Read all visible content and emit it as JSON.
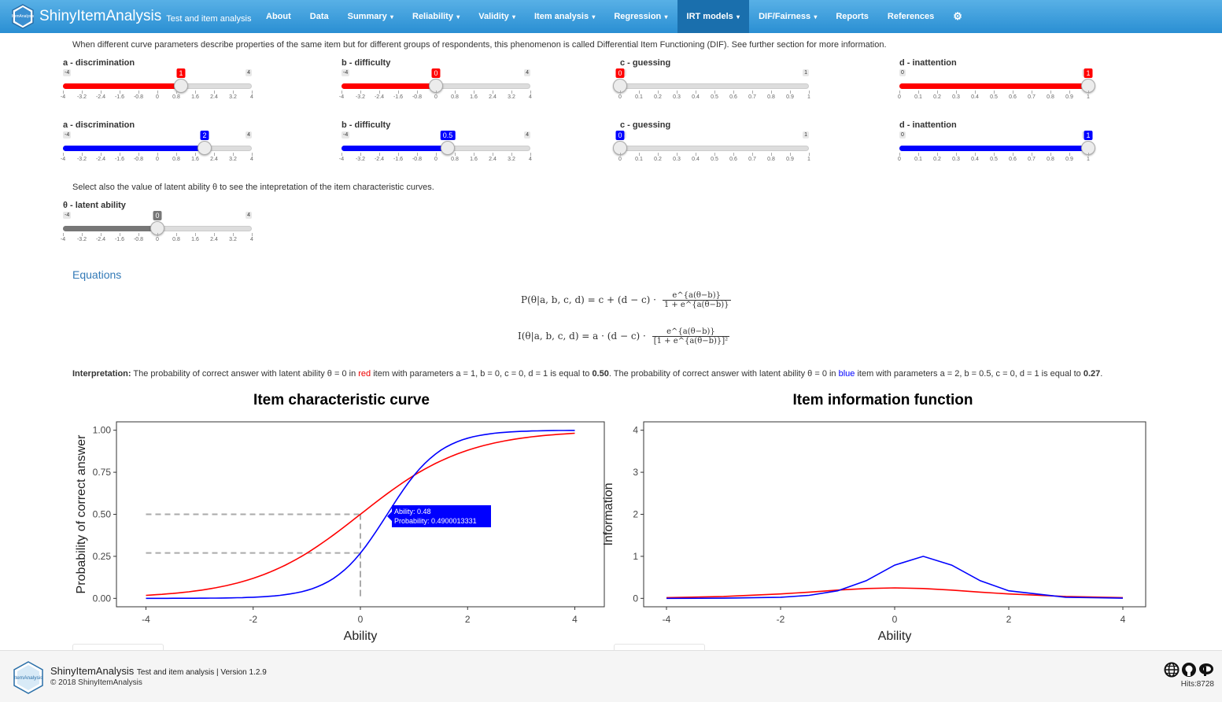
{
  "app": {
    "name": "ShinyItemAnalysis",
    "subtitle": "Test and item analysis",
    "logo_text": "ItemAnalysis"
  },
  "nav": [
    {
      "label": "About",
      "dropdown": false,
      "active": false
    },
    {
      "label": "Data",
      "dropdown": false,
      "active": false
    },
    {
      "label": "Summary",
      "dropdown": true,
      "active": false
    },
    {
      "label": "Reliability",
      "dropdown": true,
      "active": false
    },
    {
      "label": "Validity",
      "dropdown": true,
      "active": false
    },
    {
      "label": "Item analysis",
      "dropdown": true,
      "active": false
    },
    {
      "label": "Regression",
      "dropdown": true,
      "active": false
    },
    {
      "label": "IRT models",
      "dropdown": true,
      "active": true
    },
    {
      "label": "DIF/Fairness",
      "dropdown": true,
      "active": false
    },
    {
      "label": "Reports",
      "dropdown": false,
      "active": false
    },
    {
      "label": "References",
      "dropdown": false,
      "active": false
    }
  ],
  "intro_text": "When different curve parameters describe properties of the same item but for different groups of respondents, this phenomenon is called Differential Item Functioning (DIF). See further section for more information.",
  "sliders_red": [
    {
      "label": "a - discrimination",
      "min": "-4",
      "max": "4",
      "value": "1",
      "fraction": 0.625,
      "ticks": [
        "-4",
        "-3.2",
        "-2.4",
        "-1.6",
        "-0.8",
        "0",
        "0.8",
        "1.6",
        "2.4",
        "3.2",
        "4"
      ]
    },
    {
      "label": "b - difficulty",
      "min": "-4",
      "max": "4",
      "value": "0",
      "fraction": 0.5,
      "ticks": [
        "-4",
        "-3.2",
        "-2.4",
        "-1.6",
        "-0.8",
        "0",
        "0.8",
        "1.6",
        "2.4",
        "3.2",
        "4"
      ]
    },
    {
      "label": "c - guessing",
      "min": "0",
      "max": "1",
      "value": "0",
      "fraction": 0.0,
      "ticks": [
        "0",
        "0.1",
        "0.2",
        "0.3",
        "0.4",
        "0.5",
        "0.6",
        "0.7",
        "0.8",
        "0.9",
        "1"
      ]
    },
    {
      "label": "d - inattention",
      "min": "0",
      "max": "1",
      "value": "1",
      "fraction": 1.0,
      "ticks": [
        "0",
        "0.1",
        "0.2",
        "0.3",
        "0.4",
        "0.5",
        "0.6",
        "0.7",
        "0.8",
        "0.9",
        "1"
      ]
    }
  ],
  "sliders_blue": [
    {
      "label": "a - discrimination",
      "min": "-4",
      "max": "4",
      "value": "2",
      "fraction": 0.75,
      "ticks": [
        "-4",
        "-3.2",
        "-2.4",
        "-1.6",
        "-0.8",
        "0",
        "0.8",
        "1.6",
        "2.4",
        "3.2",
        "4"
      ]
    },
    {
      "label": "b - difficulty",
      "min": "-4",
      "max": "4",
      "value": "0.5",
      "fraction": 0.5625,
      "ticks": [
        "-4",
        "-3.2",
        "-2.4",
        "-1.6",
        "-0.8",
        "0",
        "0.8",
        "1.6",
        "2.4",
        "3.2",
        "4"
      ]
    },
    {
      "label": "c - guessing",
      "min": "0",
      "max": "1",
      "value": "0",
      "fraction": 0.0,
      "ticks": [
        "0",
        "0.1",
        "0.2",
        "0.3",
        "0.4",
        "0.5",
        "0.6",
        "0.7",
        "0.8",
        "0.9",
        "1"
      ]
    },
    {
      "label": "d - inattention",
      "min": "0",
      "max": "1",
      "value": "1",
      "fraction": 1.0,
      "ticks": [
        "0",
        "0.1",
        "0.2",
        "0.3",
        "0.4",
        "0.5",
        "0.6",
        "0.7",
        "0.8",
        "0.9",
        "1"
      ]
    }
  ],
  "ability_note": "Select also the value of latent ability θ to see the intepretation of the item characteristic curves.",
  "slider_theta": {
    "label": "θ - latent ability",
    "min": "-4",
    "max": "4",
    "value": "0",
    "fraction": 0.5,
    "ticks": [
      "-4",
      "-3.2",
      "-2.4",
      "-1.6",
      "-0.8",
      "0",
      "0.8",
      "1.6",
      "2.4",
      "3.2",
      "4"
    ]
  },
  "colors": {
    "red": "#ff0000",
    "blue": "#0000ff",
    "gray": "#777777",
    "nav_active": "#1a6fad",
    "link": "#337ab7"
  },
  "equations_title": "Equations",
  "equations": {
    "p_lhs": "P(θ|a, b, c, d) = c + (d − c) ·",
    "p_num": "e^{a(θ−b)}",
    "p_den": "1 + e^{a(θ−b)}",
    "i_lhs": "I(θ|a, b, c, d) = a · (d − c) ·",
    "i_num": "e^{a(θ−b)}",
    "i_den": "[1 + e^{a(θ−b)}]²"
  },
  "interpretation": {
    "label": "Interpretation:",
    "part1": " The probability of correct answer with latent ability θ = 0 in ",
    "red_word": "red",
    "part2": " item with parameters a = 1, b = 0, c = 0, d = 1 is equal to ",
    "red_value": "0.50",
    "part3": ". The probability of correct answer with latent ability θ = 0 in ",
    "blue_word": "blue",
    "part4": " item with parameters a = 2, b = 0.5, c = 0, d = 1 is equal to ",
    "blue_value": "0.27",
    "part5": "."
  },
  "tooltip": {
    "ability": "Ability:  0.48",
    "probability": "Probability: 0.4900013331"
  },
  "chart_data": [
    {
      "type": "line",
      "title": "Item characteristic curve",
      "xlabel": "Ability",
      "ylabel": "Probability of correct answer",
      "xlim": [
        -4,
        4
      ],
      "ylim": [
        0,
        1
      ],
      "x_ticks": [
        "-4",
        "-2",
        "0",
        "2",
        "4"
      ],
      "y_ticks": [
        "0.00",
        "0.25",
        "0.50",
        "0.75",
        "1.00"
      ],
      "grid": false,
      "series": [
        {
          "color": "#ff0000",
          "params": {
            "a": 1,
            "b": 0,
            "c": 0,
            "d": 1
          },
          "x": [
            -4,
            -3,
            -2,
            -1.5,
            -1,
            -0.5,
            0,
            0.5,
            1,
            1.5,
            2,
            3,
            4
          ],
          "y": [
            0.018,
            0.047,
            0.119,
            0.182,
            0.269,
            0.378,
            0.5,
            0.622,
            0.731,
            0.818,
            0.881,
            0.953,
            0.982
          ]
        },
        {
          "color": "#0000ff",
          "params": {
            "a": 2,
            "b": 0.5,
            "c": 0,
            "d": 1
          },
          "x": [
            -4,
            -3,
            -2,
            -1.5,
            -1,
            -0.5,
            0,
            0.5,
            1,
            1.5,
            2,
            3,
            4
          ],
          "y": [
            0.0001,
            0.0009,
            0.0067,
            0.018,
            0.047,
            0.119,
            0.269,
            0.5,
            0.731,
            0.881,
            0.953,
            0.993,
            0.999
          ]
        }
      ],
      "reference_lines": [
        {
          "theta": 0,
          "probability": 0.5
        },
        {
          "theta": 0,
          "probability": 0.27
        }
      ]
    },
    {
      "type": "line",
      "title": "Item information function",
      "xlabel": "Ability",
      "ylabel": "Information",
      "xlim": [
        -4,
        4
      ],
      "ylim": [
        0,
        4
      ],
      "x_ticks": [
        "-4",
        "-2",
        "0",
        "2",
        "4"
      ],
      "y_ticks": [
        "0",
        "1",
        "2",
        "3",
        "4"
      ],
      "grid": false,
      "series": [
        {
          "color": "#ff0000",
          "x": [
            -4,
            -3,
            -2,
            -1.5,
            -1,
            -0.5,
            0,
            0.5,
            1,
            1.5,
            2,
            3,
            4
          ],
          "y": [
            0.018,
            0.045,
            0.105,
            0.149,
            0.197,
            0.235,
            0.25,
            0.235,
            0.197,
            0.149,
            0.105,
            0.045,
            0.018
          ]
        },
        {
          "color": "#0000ff",
          "x": [
            -4,
            -3,
            -2,
            -1.5,
            -1,
            -0.5,
            0,
            0.5,
            1,
            1.5,
            2,
            3,
            4
          ],
          "y": [
            0.0005,
            0.0036,
            0.027,
            0.071,
            0.18,
            0.42,
            0.79,
            1.0,
            0.79,
            0.42,
            0.18,
            0.027,
            0.0036
          ]
        }
      ]
    }
  ],
  "footer": {
    "name": "ShinyItemAnalysis",
    "desc": "Test and item analysis | Version 1.2.9",
    "copyright": "© 2018 ShinyItemAnalysis",
    "hits": "Hits:8728"
  }
}
